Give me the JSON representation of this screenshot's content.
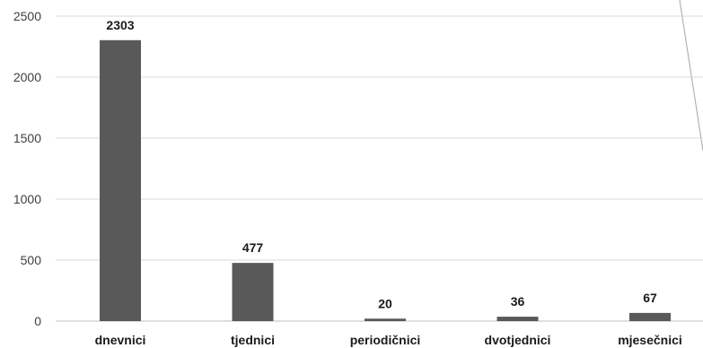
{
  "chart_data": {
    "type": "bar",
    "categories": [
      "dnevnici",
      "tjednici",
      "periodičnici",
      "dvotjednici",
      "mjesečnici"
    ],
    "values": [
      2303,
      477,
      20,
      36,
      67
    ],
    "title": "",
    "xlabel": "",
    "ylabel": "",
    "ylim": [
      0,
      2500
    ],
    "yticks": [
      0,
      500,
      1000,
      1500,
      2000,
      2500
    ],
    "grid": true,
    "legend": "none",
    "bar_color": "#595959"
  }
}
